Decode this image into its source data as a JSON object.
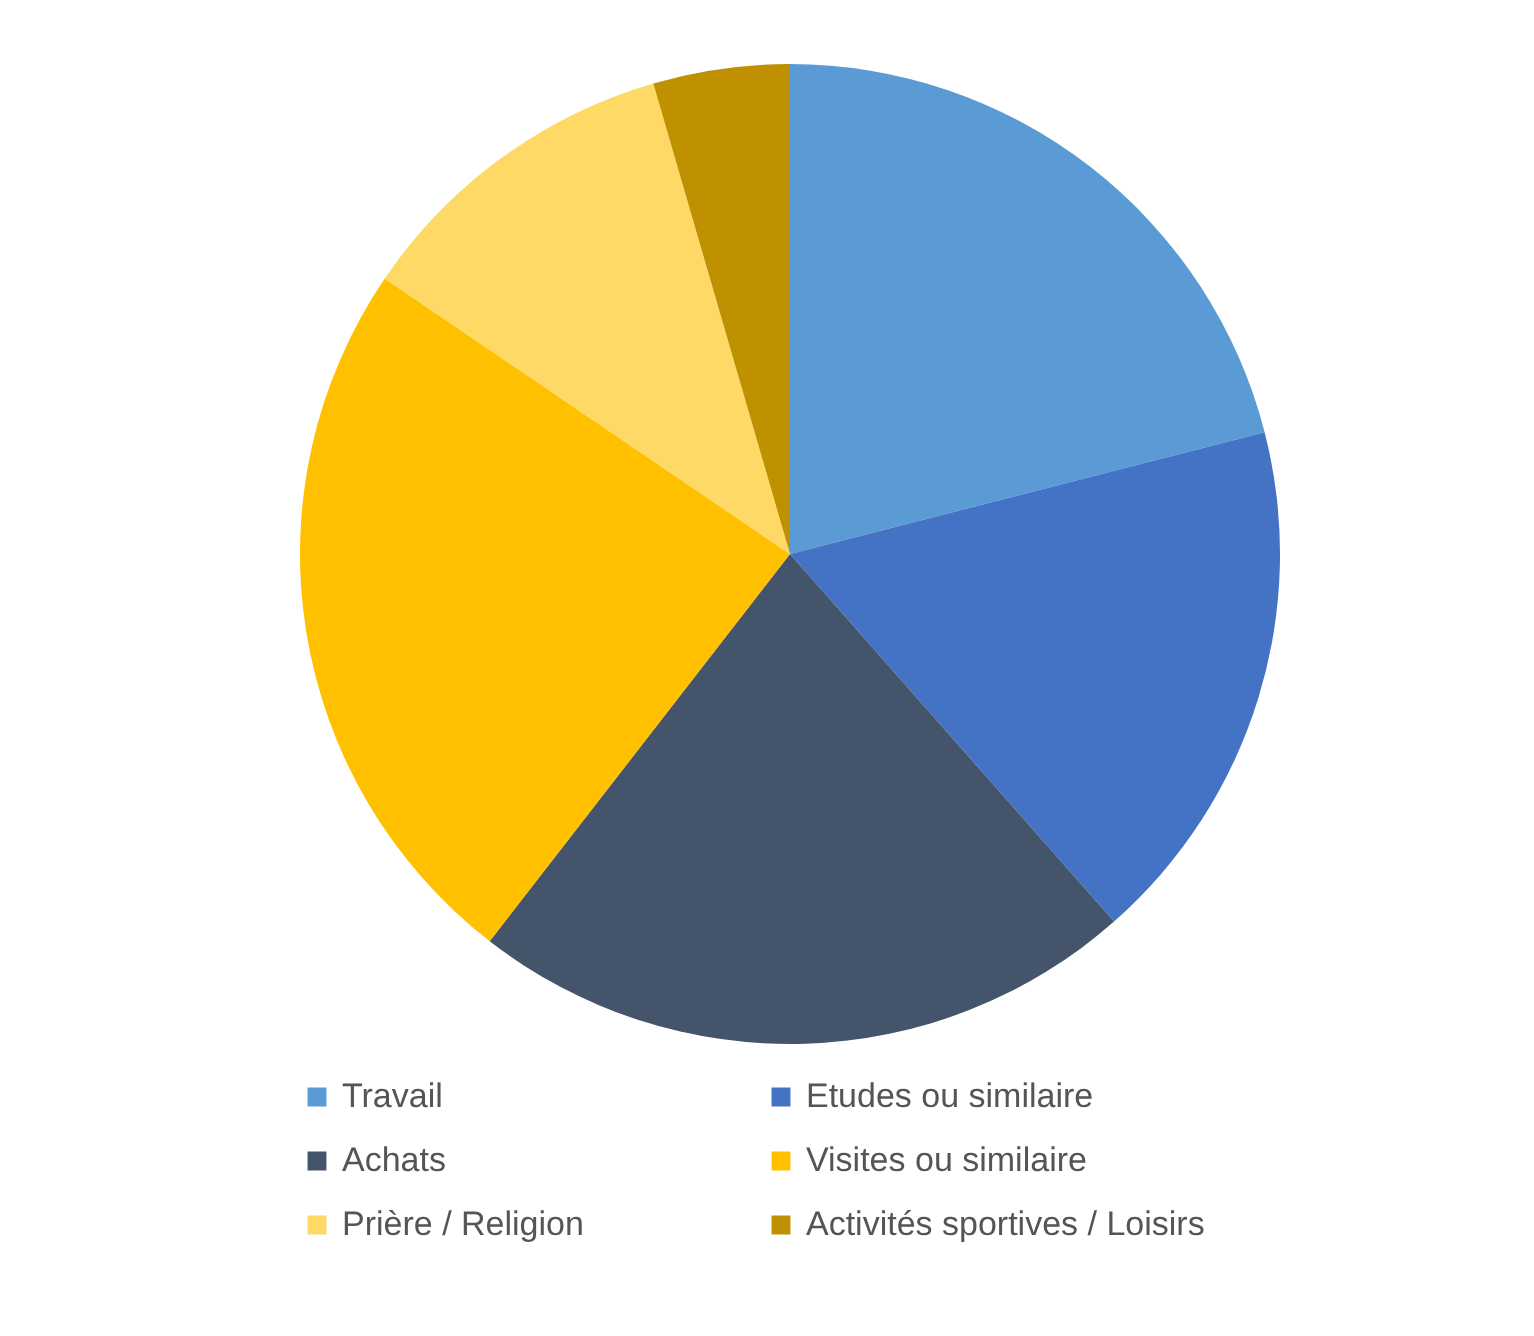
{
  "chart_data": {
    "type": "pie",
    "categories": [
      "Travail",
      "Etudes ou similaire",
      "Achats",
      "Visites ou similaire",
      "Prière / Religion",
      "Activités sportives / Loisirs"
    ],
    "values": [
      21,
      17.5,
      22,
      24,
      11,
      4.5
    ],
    "colors": [
      "#5b9bd5",
      "#4472c4",
      "#44546a",
      "#ffc000",
      "#ffd966",
      "#bf9000"
    ],
    "legend": "bottom"
  }
}
